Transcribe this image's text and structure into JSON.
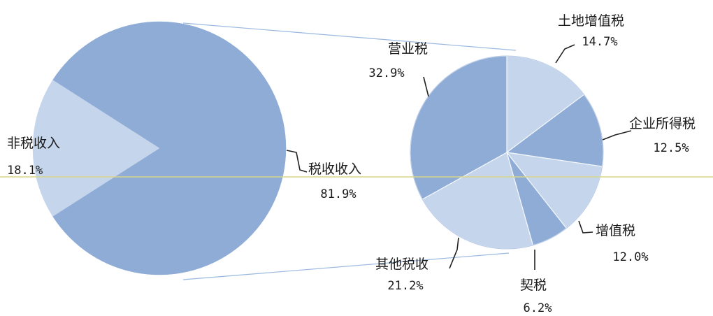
{
  "chart_data": {
    "type": "pie",
    "title": "",
    "main": {
      "slices": [
        {
          "label": "税收收入",
          "value": 81.9,
          "display": "81.9%",
          "color": "#8eacd6"
        },
        {
          "label": "非税收入",
          "value": 18.1,
          "display": "18.1%",
          "color": "#c5d5ec"
        }
      ]
    },
    "detail": {
      "parent": "税收收入",
      "slices": [
        {
          "label": "土地增值税",
          "value": 14.7,
          "display": "14.7%",
          "color": "#c5d5ec"
        },
        {
          "label": "企业所得税",
          "value": 12.5,
          "display": "12.5%",
          "color": "#8eacd6"
        },
        {
          "label": "增值税",
          "value": 12.0,
          "display": "12.0%",
          "color": "#c5d5ec"
        },
        {
          "label": "契税",
          "value": 6.2,
          "display": "6.2%",
          "color": "#8eacd6"
        },
        {
          "label": "其他税收",
          "value": 21.2,
          "display": "21.2%",
          "color": "#c5d5ec"
        },
        {
          "label": "营业税",
          "value": 32.9,
          "display": "32.9%",
          "color": "#8eacd6"
        }
      ]
    },
    "connector_color": "#9ab8e0",
    "leader_color": "#222222",
    "midline_color": "#d6d68a"
  }
}
